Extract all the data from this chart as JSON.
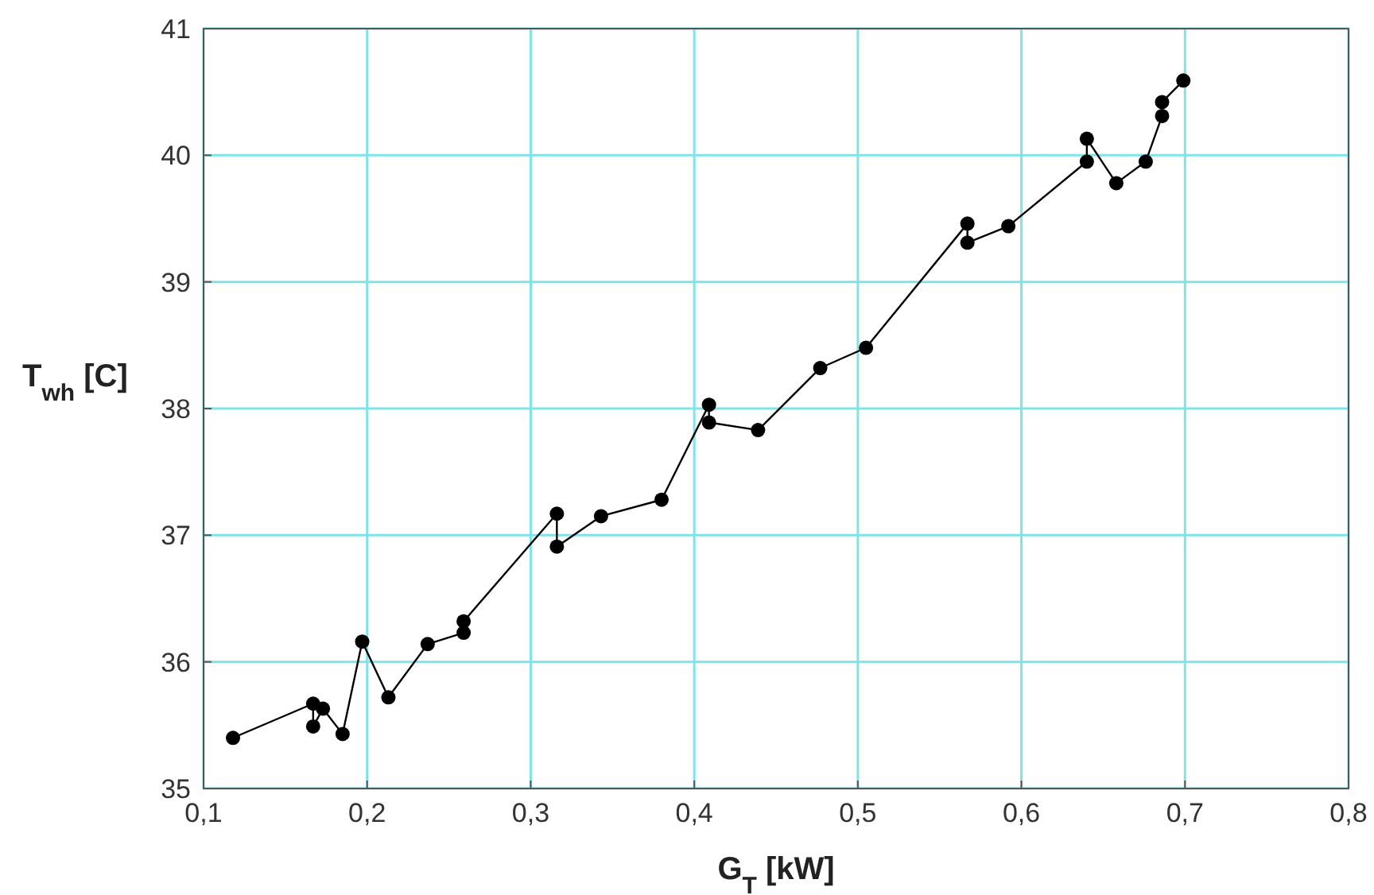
{
  "chart_data": {
    "type": "line",
    "xlabel": "G$_{T}$  [kW]",
    "ylabel": "T$_{wh}$  [C]",
    "xlim": [
      0.1,
      0.8
    ],
    "ylim": [
      35,
      41
    ],
    "xticks": [
      {
        "value": 0.1,
        "label": "0,1"
      },
      {
        "value": 0.2,
        "label": "0,2"
      },
      {
        "value": 0.3,
        "label": "0,3"
      },
      {
        "value": 0.4,
        "label": "0,4"
      },
      {
        "value": 0.5,
        "label": "0,5"
      },
      {
        "value": 0.6,
        "label": "0,6"
      },
      {
        "value": 0.7,
        "label": "0,7"
      },
      {
        "value": 0.8,
        "label": "0,8"
      }
    ],
    "yticks": [
      35,
      36,
      37,
      38,
      39,
      40,
      41
    ],
    "grid": true,
    "marker": "circle",
    "line_style": "solid",
    "series": [
      {
        "color": "#000000",
        "x": [
          0.118,
          0.167,
          0.167,
          0.173,
          0.185,
          0.197,
          0.213,
          0.237,
          0.259,
          0.259,
          0.316,
          0.316,
          0.343,
          0.38,
          0.409,
          0.409,
          0.439,
          0.477,
          0.505,
          0.567,
          0.567,
          0.592,
          0.64,
          0.64,
          0.658,
          0.676,
          0.686,
          0.686,
          0.699
        ],
        "values": [
          35.4,
          35.67,
          35.49,
          35.63,
          35.43,
          36.16,
          35.72,
          36.14,
          36.23,
          36.32,
          37.17,
          36.91,
          37.15,
          37.28,
          38.03,
          37.89,
          37.83,
          38.32,
          38.48,
          39.46,
          39.31,
          39.44,
          39.95,
          40.13,
          39.78,
          39.95,
          40.31,
          40.42,
          40.59
        ]
      }
    ]
  }
}
